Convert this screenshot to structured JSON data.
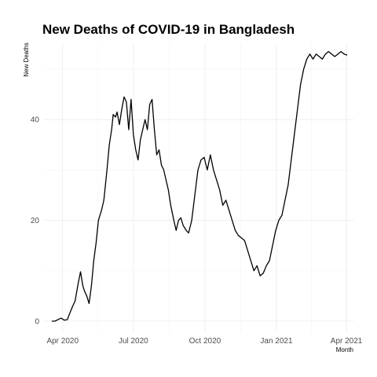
{
  "chart_data": {
    "type": "line",
    "title": "New Deaths of COVID-19 in Bangladesh",
    "xlabel": "Month",
    "ylabel": "New Deaths",
    "x_tick_labels": [
      "Apr 2020",
      "Jul 2020",
      "Oct 2020",
      "Jan 2021",
      "Apr 2021"
    ],
    "x_tick_dates": [
      "2020-04-01",
      "2020-07-01",
      "2020-10-01",
      "2021-01-01",
      "2021-04-01"
    ],
    "y_ticks": [
      0,
      20,
      40
    ],
    "xlim": [
      "2020-03-08",
      "2021-04-10"
    ],
    "ylim": [
      -2.2,
      55
    ],
    "grid": true,
    "series": [
      {
        "color": "#000000",
        "x": [
          "2020-03-18",
          "2020-03-22",
          "2020-03-26",
          "2020-03-30",
          "2020-04-03",
          "2020-04-07",
          "2020-04-10",
          "2020-04-14",
          "2020-04-17",
          "2020-04-21",
          "2020-04-24",
          "2020-04-27",
          "2020-04-29",
          "2020-05-02",
          "2020-05-05",
          "2020-05-08",
          "2020-05-11",
          "2020-05-14",
          "2020-05-17",
          "2020-05-21",
          "2020-05-24",
          "2020-05-28",
          "2020-05-31",
          "2020-06-03",
          "2020-06-05",
          "2020-06-08",
          "2020-06-10",
          "2020-06-13",
          "2020-06-16",
          "2020-06-19",
          "2020-06-22",
          "2020-06-25",
          "2020-06-28",
          "2020-07-01",
          "2020-07-04",
          "2020-07-07",
          "2020-07-10",
          "2020-07-13",
          "2020-07-16",
          "2020-07-19",
          "2020-07-22",
          "2020-07-25",
          "2020-07-28",
          "2020-07-31",
          "2020-08-03",
          "2020-08-06",
          "2020-08-09",
          "2020-08-12",
          "2020-08-15",
          "2020-08-18",
          "2020-08-22",
          "2020-08-25",
          "2020-08-28",
          "2020-08-31",
          "2020-09-03",
          "2020-09-07",
          "2020-09-10",
          "2020-09-14",
          "2020-09-18",
          "2020-09-22",
          "2020-09-26",
          "2020-09-30",
          "2020-10-04",
          "2020-10-08",
          "2020-10-12",
          "2020-10-16",
          "2020-10-20",
          "2020-10-24",
          "2020-10-28",
          "2020-11-01",
          "2020-11-05",
          "2020-11-09",
          "2020-11-13",
          "2020-11-17",
          "2020-11-21",
          "2020-11-25",
          "2020-11-29",
          "2020-12-03",
          "2020-12-07",
          "2020-12-11",
          "2020-12-15",
          "2020-12-19",
          "2020-12-23",
          "2020-12-27",
          "2020-12-31",
          "2021-01-04",
          "2021-01-08",
          "2021-01-12",
          "2021-01-16",
          "2021-01-20",
          "2021-01-24",
          "2021-01-28",
          "2021-02-01",
          "2021-02-05",
          "2021-02-09",
          "2021-02-13",
          "2021-02-17",
          "2021-02-21",
          "2021-02-25",
          "2021-03-01",
          "2021-03-05",
          "2021-03-09",
          "2021-03-13",
          "2021-03-17",
          "2021-03-21",
          "2021-03-25",
          "2021-03-29",
          "2021-04-02"
        ],
        "values": [
          0,
          0,
          0.3,
          0.6,
          0.2,
          0.3,
          1.5,
          3,
          4,
          7.5,
          9.8,
          7,
          6,
          5,
          3.5,
          7,
          12,
          15.5,
          20,
          22,
          24,
          30,
          35,
          38,
          41,
          40.5,
          41.5,
          39,
          42,
          44.5,
          43.5,
          38,
          44,
          37,
          34,
          32,
          36,
          38,
          40,
          38,
          43,
          44,
          38,
          33,
          34,
          31,
          30,
          28,
          26,
          23,
          20,
          18,
          20,
          20.5,
          19,
          18,
          17.5,
          20,
          25,
          30,
          32,
          32.5,
          30,
          33,
          30,
          28,
          26,
          23,
          24,
          22,
          20,
          18,
          17,
          16.5,
          16,
          14,
          12,
          10,
          11,
          9,
          9.5,
          11,
          12,
          15,
          18,
          20,
          21,
          24,
          27,
          32,
          37,
          42,
          47,
          50,
          52,
          53,
          52,
          53,
          52.5,
          52,
          53,
          53.5,
          53,
          52.5,
          53,
          53.5,
          53,
          52.8
        ]
      }
    ]
  }
}
